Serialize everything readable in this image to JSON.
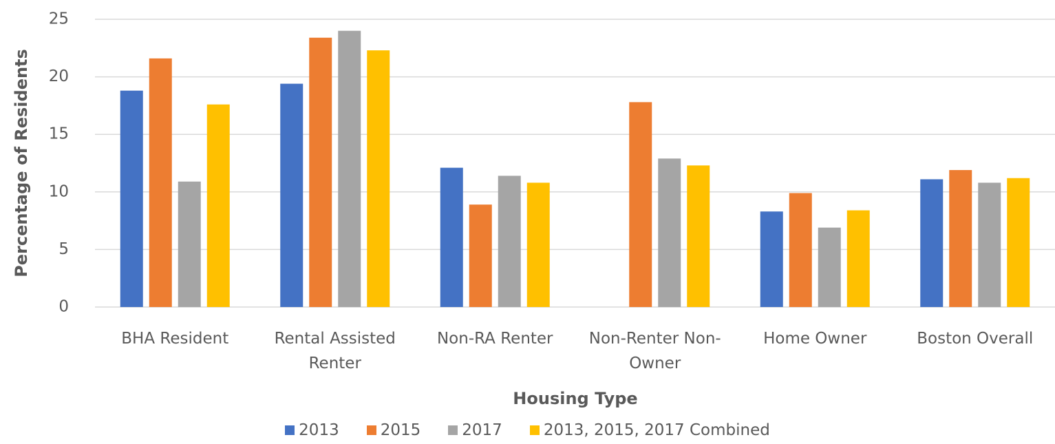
{
  "chart_data": {
    "type": "bar",
    "x_label": "Housing Type",
    "y_label": "Percentage of Residents",
    "categories": [
      "BHA Resident",
      "Rental Assisted Renter",
      "Non-RA Renter",
      "Non-Renter Non-Owner",
      "Home Owner",
      "Boston Overall"
    ],
    "series": [
      {
        "name": "2013",
        "color": "#4472c4",
        "values": [
          18.8,
          19.4,
          12.1,
          null,
          8.3,
          11.1
        ]
      },
      {
        "name": "2015",
        "color": "#ed7d31",
        "values": [
          21.6,
          23.4,
          8.9,
          17.8,
          9.9,
          11.9
        ]
      },
      {
        "name": "2017",
        "color": "#a5a5a5",
        "values": [
          10.9,
          24.0,
          11.4,
          12.9,
          6.9,
          10.8
        ]
      },
      {
        "name": "2013, 2015, 2017 Combined",
        "color": "#ffc000",
        "values": [
          17.6,
          22.3,
          10.8,
          12.3,
          8.4,
          11.2
        ]
      }
    ],
    "ylim": [
      0,
      25
    ],
    "yticks": [
      0,
      5,
      10,
      15,
      20,
      25
    ],
    "grid": true,
    "legend": "bottom"
  }
}
